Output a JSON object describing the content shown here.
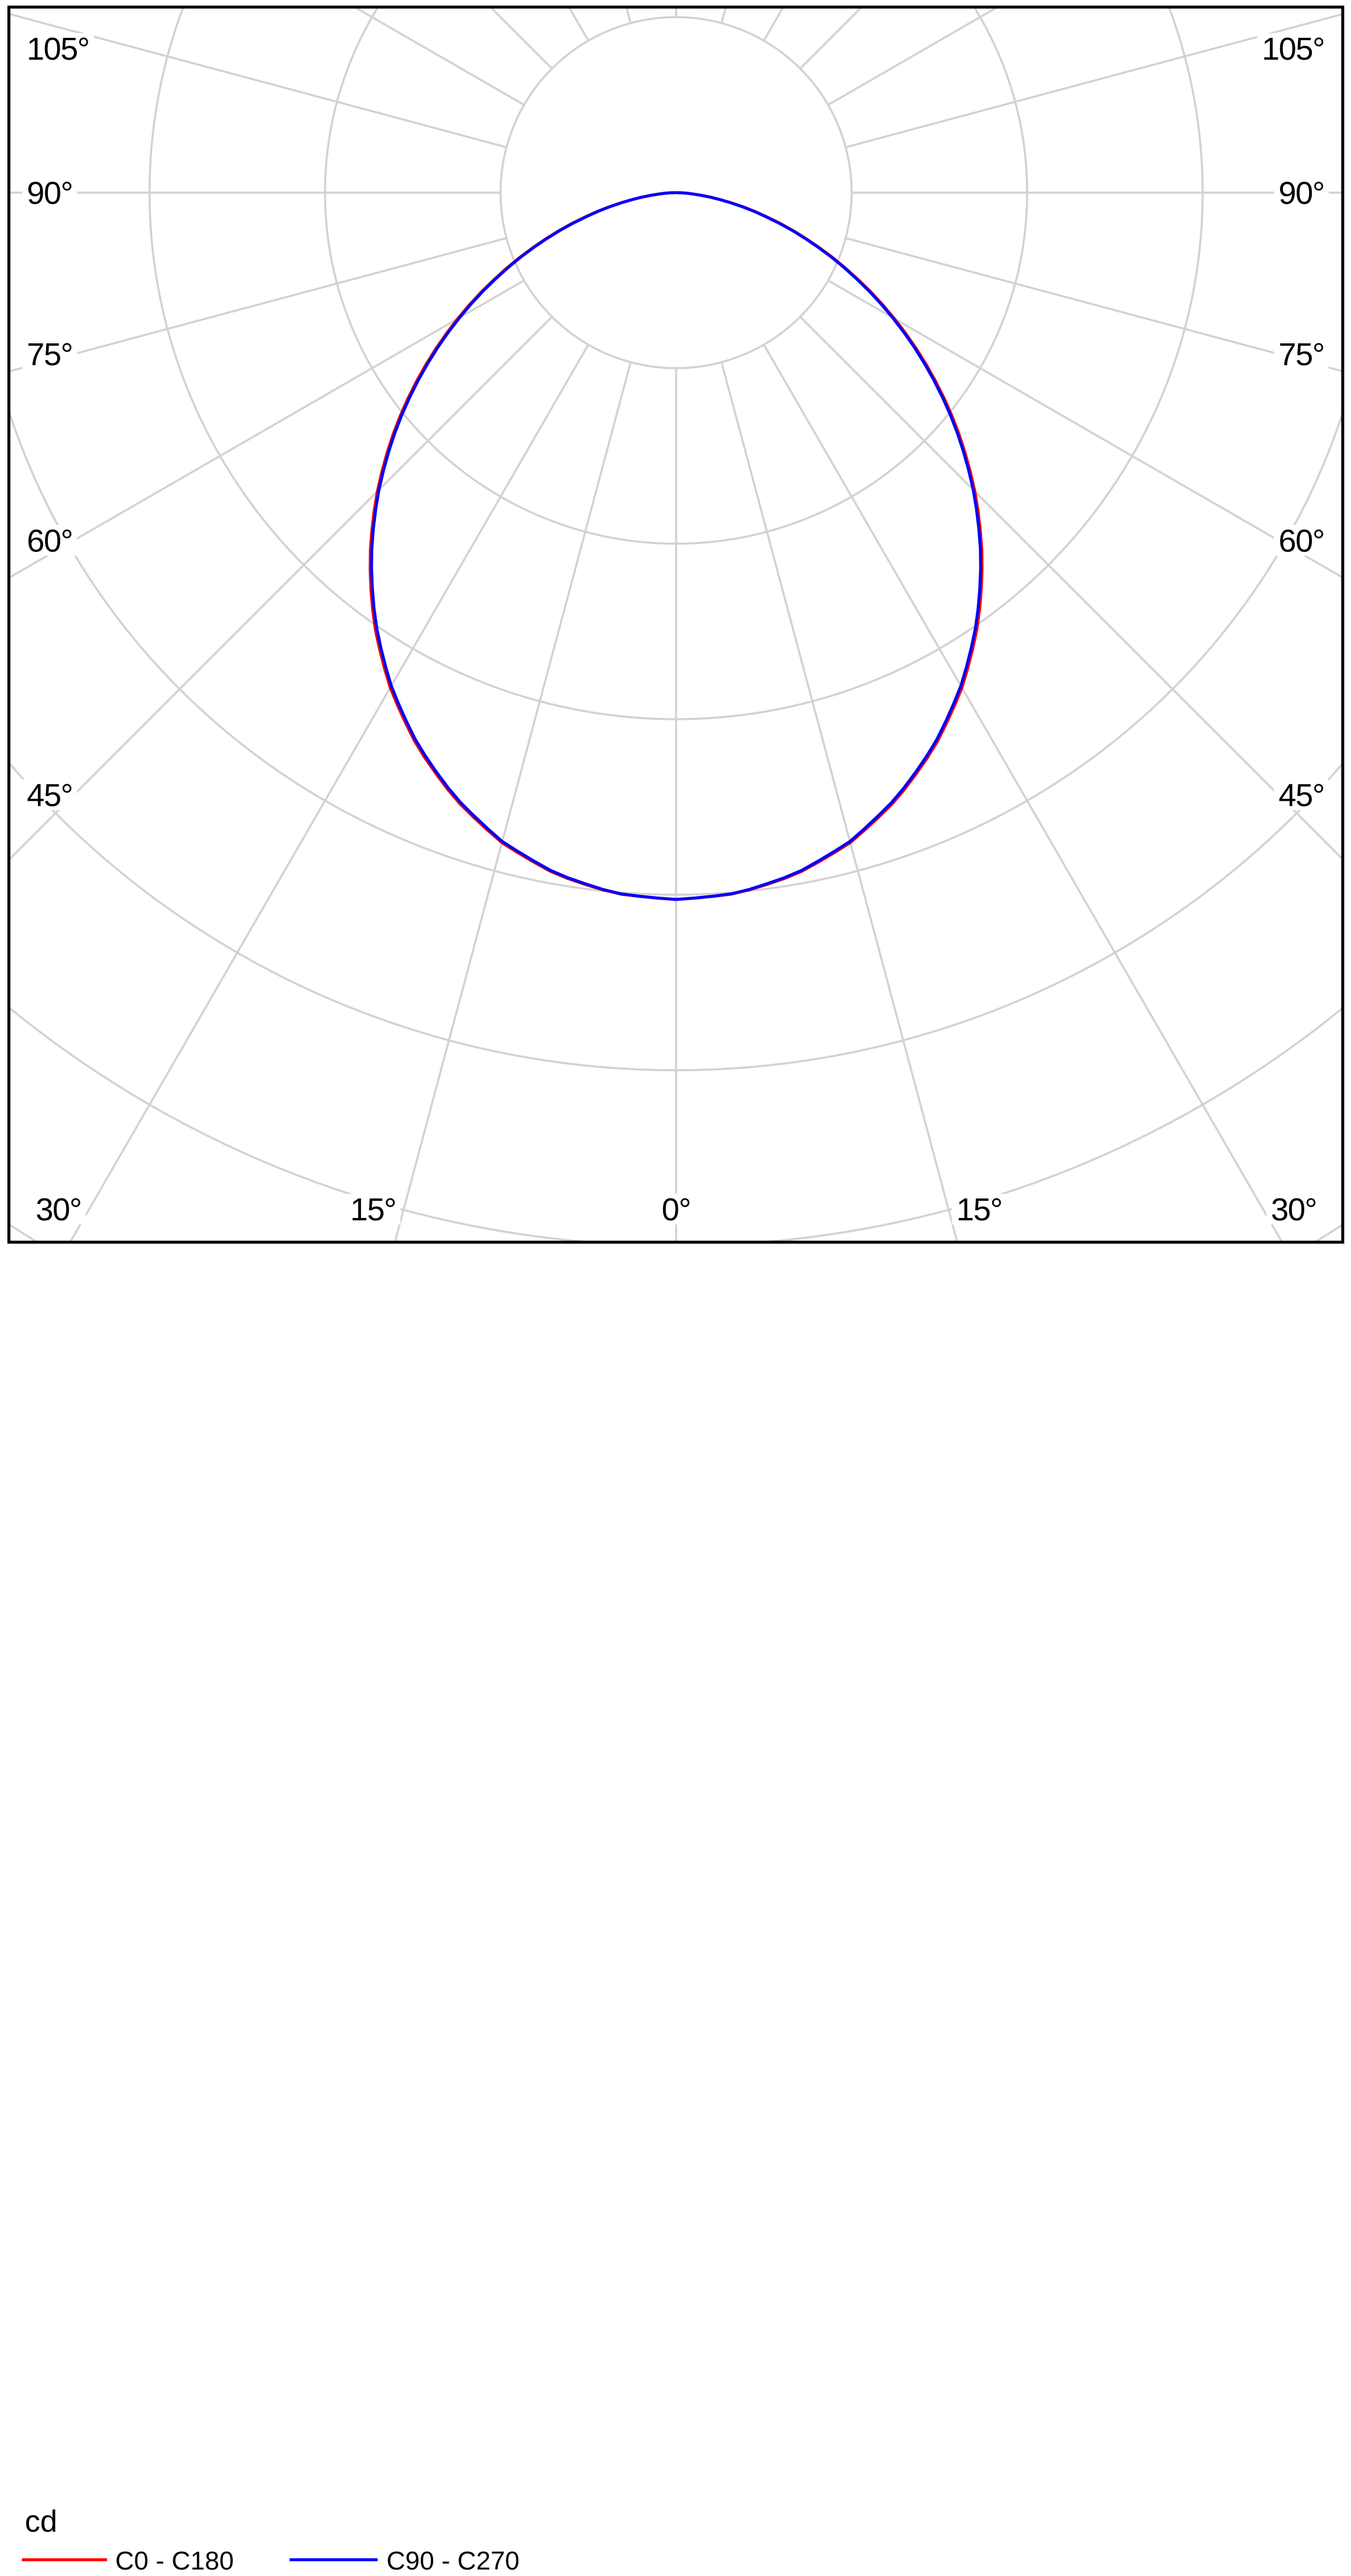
{
  "figure": {
    "background": "#ffffff",
    "frame_color": "#000000",
    "grid_color": "#d2d2d2",
    "text_color": "#000000"
  },
  "chart_data": {
    "type": "polar",
    "subtype": "luminous-intensity-distribution",
    "unit_label": "cd",
    "angular_grid_step_deg": 15,
    "rings": {
      "count": 7,
      "labels_shown": false
    },
    "axis_labels": {
      "left": [
        {
          "text": "105°",
          "deg": 105
        },
        {
          "text": "90°",
          "deg": 90
        },
        {
          "text": "75°",
          "deg": 75
        },
        {
          "text": "60°",
          "deg": 60
        },
        {
          "text": "45°",
          "deg": 45
        }
      ],
      "right": [
        {
          "text": "105°",
          "deg": 105
        },
        {
          "text": "90°",
          "deg": 90
        },
        {
          "text": "75°",
          "deg": 75
        },
        {
          "text": "60°",
          "deg": 60
        },
        {
          "text": "45°",
          "deg": 45
        }
      ],
      "bottom": [
        {
          "text": "30°",
          "deg": 30,
          "side": "left"
        },
        {
          "text": "15°",
          "deg": 15,
          "side": "left"
        },
        {
          "text": "0°",
          "deg": 0,
          "side": "center"
        },
        {
          "text": "15°",
          "deg": 15,
          "side": "right"
        },
        {
          "text": "30°",
          "deg": 30,
          "side": "right"
        }
      ]
    },
    "series": [
      {
        "name": "C0 - C180",
        "color": "#ff0000",
        "samples_deg_rings": [
          [
            0,
            4.027
          ],
          [
            5,
            4.007
          ],
          [
            10,
            3.943
          ],
          [
            15,
            3.834
          ],
          [
            20,
            3.677
          ],
          [
            25,
            3.484
          ],
          [
            30,
            3.257
          ],
          [
            35,
            2.998
          ],
          [
            40,
            2.713
          ],
          [
            45,
            2.407
          ],
          [
            50,
            2.088
          ],
          [
            55,
            1.762
          ],
          [
            60,
            1.436
          ],
          [
            65,
            1.116
          ],
          [
            70,
            0.814
          ],
          [
            75,
            0.537
          ],
          [
            80,
            0.296
          ],
          [
            85,
            0.106
          ],
          [
            90,
            0.004
          ]
        ]
      },
      {
        "name": "C90 - C270",
        "color": "#0000ff",
        "samples_deg_rings": [
          [
            0,
            4.027
          ],
          [
            5,
            4.005
          ],
          [
            10,
            3.938
          ],
          [
            15,
            3.827
          ],
          [
            20,
            3.668
          ],
          [
            25,
            3.474
          ],
          [
            30,
            3.245
          ],
          [
            35,
            2.985
          ],
          [
            40,
            2.7
          ],
          [
            45,
            2.394
          ],
          [
            50,
            2.075
          ],
          [
            55,
            1.749
          ],
          [
            60,
            1.424
          ],
          [
            65,
            1.106
          ],
          [
            70,
            0.805
          ],
          [
            75,
            0.53
          ],
          [
            80,
            0.291
          ],
          [
            85,
            0.104
          ],
          [
            90,
            0.0
          ]
        ]
      }
    ],
    "legend": {
      "unit_label": "cd",
      "items": [
        {
          "label": "C0 - C180",
          "color": "#ff0000"
        },
        {
          "label": "C90 - C270",
          "color": "#0000ff"
        }
      ]
    }
  }
}
